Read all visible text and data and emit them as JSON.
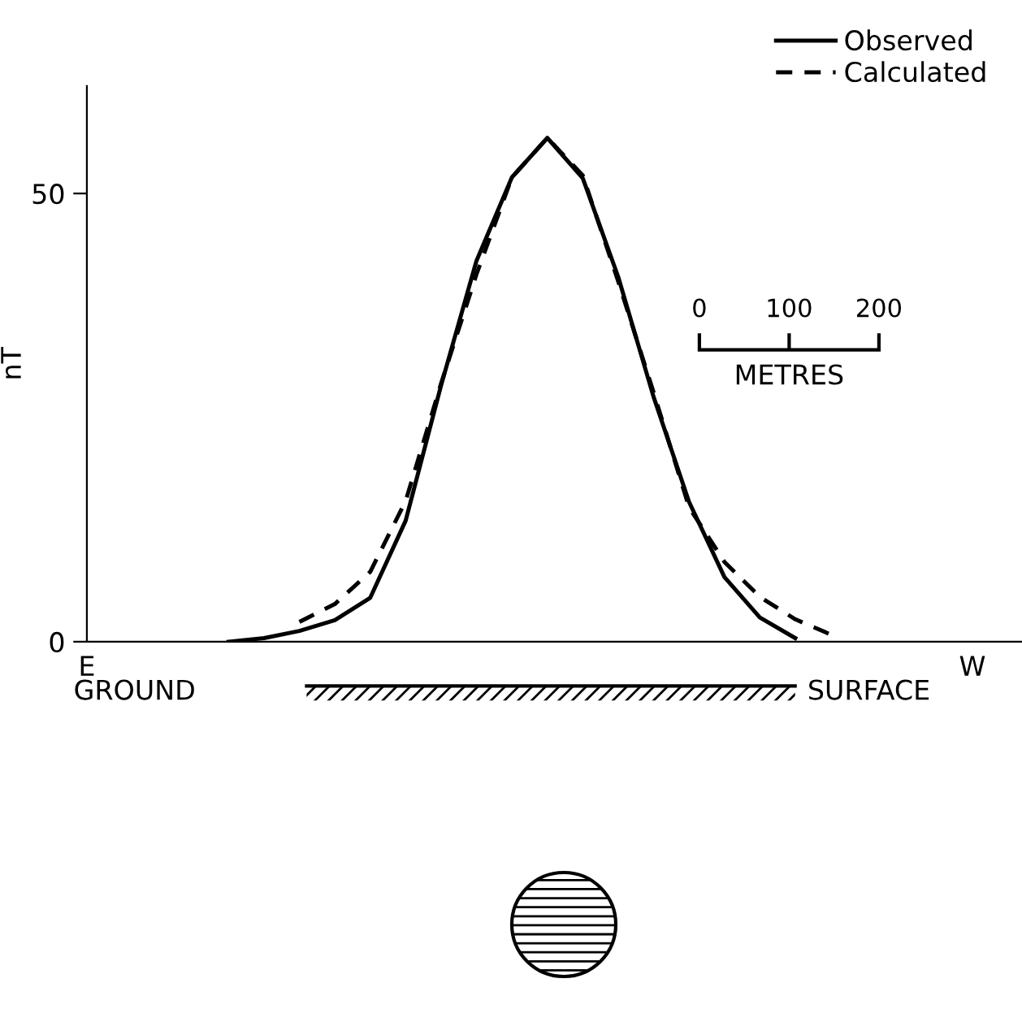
{
  "chart_data": {
    "type": "line",
    "ylabel": "nT",
    "categories": [
      "E",
      null,
      null,
      null,
      null,
      null,
      null,
      null,
      null,
      null,
      null,
      null,
      null,
      null,
      null,
      null,
      null,
      null,
      null,
      null,
      null,
      null,
      null,
      null,
      null,
      "W",
      null
    ],
    "ylim": [
      0,
      62
    ],
    "yticks": [
      0,
      50
    ],
    "grid": false,
    "legend": "top right",
    "marker": "none",
    "series": [
      {
        "name": "Observed",
        "color": "#000000",
        "line_style": "solid",
        "values": [
          null,
          null,
          null,
          null,
          0,
          0.4,
          1.2,
          2.4,
          4.9,
          13.5,
          28.6,
          42.5,
          51.8,
          56.2,
          51.7,
          40.7,
          27.3,
          15.6,
          7.2,
          2.7,
          0.4,
          null,
          null,
          null,
          null,
          null,
          null
        ]
      },
      {
        "name": "Calculated",
        "color": "#000000",
        "line_style": "dashed",
        "values": [
          null,
          null,
          null,
          null,
          null,
          null,
          2.2,
          4.2,
          7.8,
          15.7,
          28.8,
          41.0,
          51.8,
          56.2,
          52.0,
          40.2,
          27.8,
          15.0,
          8.9,
          5.0,
          2.5,
          0.8,
          null,
          null,
          null,
          null,
          null
        ]
      }
    ],
    "annotations": [
      "0",
      "100",
      "200",
      "METRES",
      "GROUND",
      "SURFACE"
    ]
  }
}
